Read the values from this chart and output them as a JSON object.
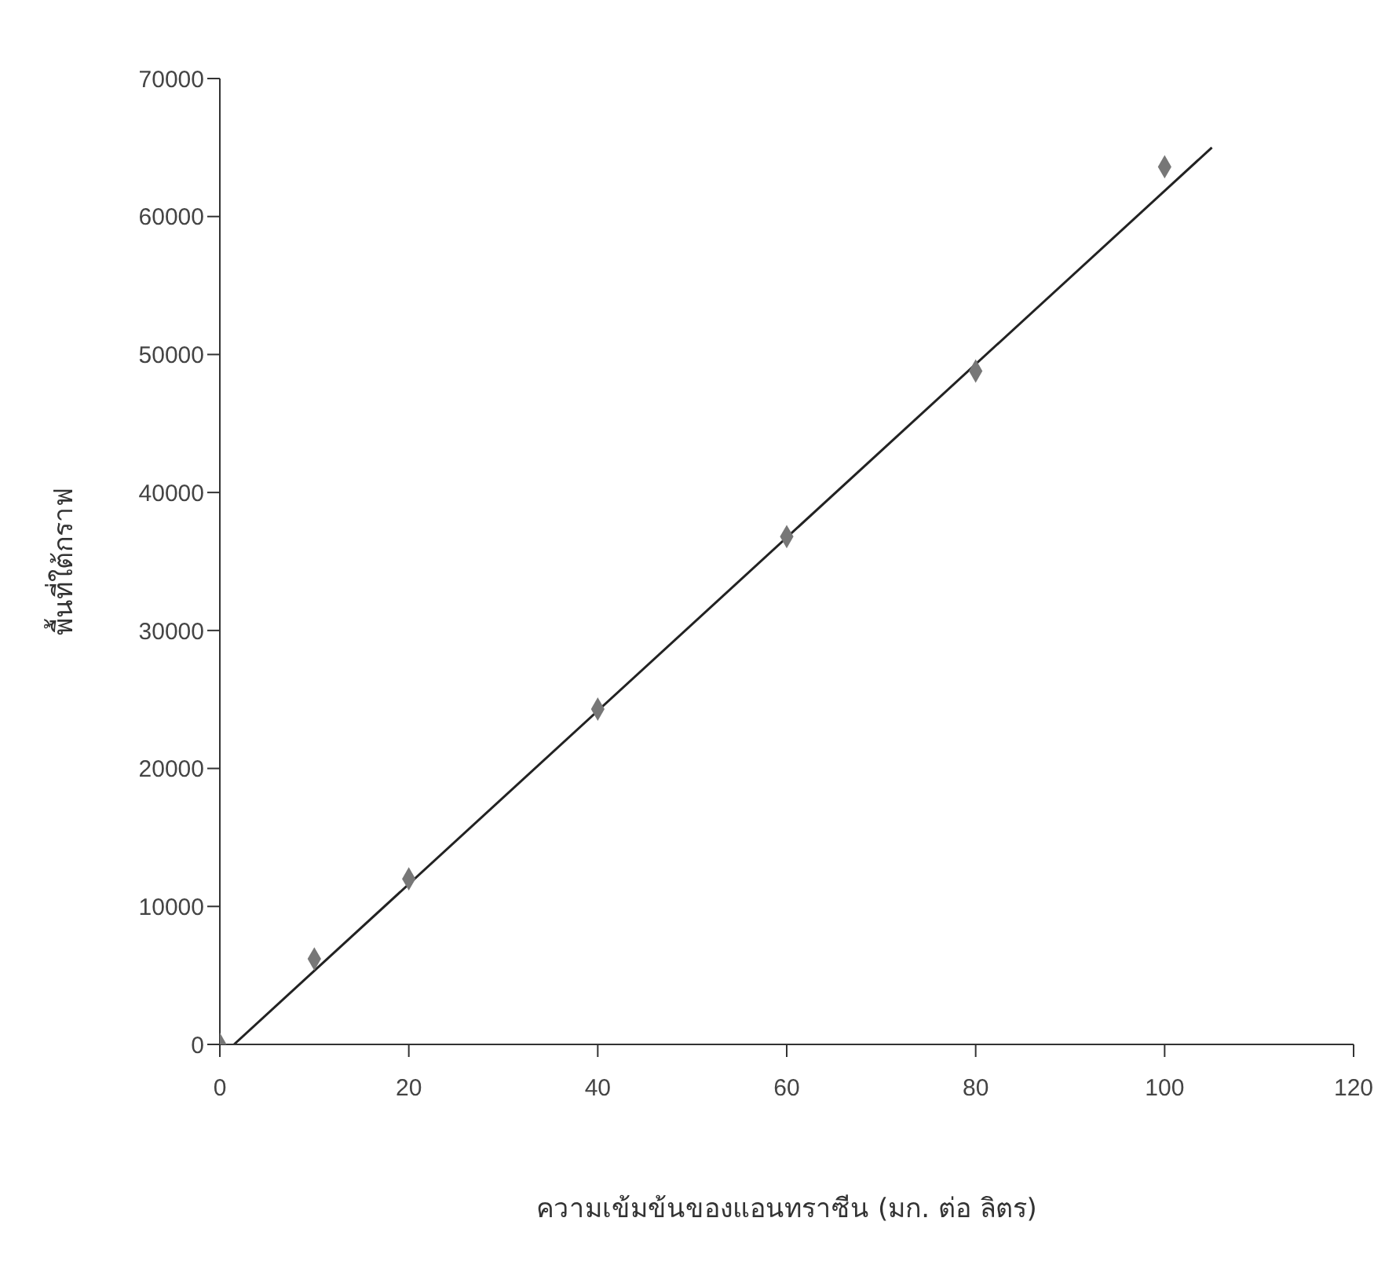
{
  "chart_data": {
    "type": "scatter",
    "xlabel": "ความเข้มข้นของแอนทราซีน (มก. ต่อ ลิตร)",
    "ylabel": "พื้นที่ใต้กราฟ",
    "xlim": [
      0,
      120
    ],
    "xticks": [
      0,
      20,
      40,
      60,
      80,
      100,
      120
    ],
    "ylim": [
      0,
      70000
    ],
    "yticks": [
      0,
      10000,
      20000,
      30000,
      40000,
      50000,
      60000,
      70000
    ],
    "grid": false,
    "legend": false,
    "series": [
      {
        "color": "#777777",
        "marker": "diamond",
        "x": [
          0,
          10,
          20,
          40,
          60,
          80,
          100
        ],
        "values": [
          0,
          6200,
          12000,
          24300,
          36800,
          48800,
          63600
        ]
      },
      {
        "type": "line",
        "color": "#222222",
        "marker": "none",
        "line_style": "solid",
        "x": [
          1.5,
          105
        ],
        "values": [
          0,
          65000
        ]
      }
    ]
  }
}
